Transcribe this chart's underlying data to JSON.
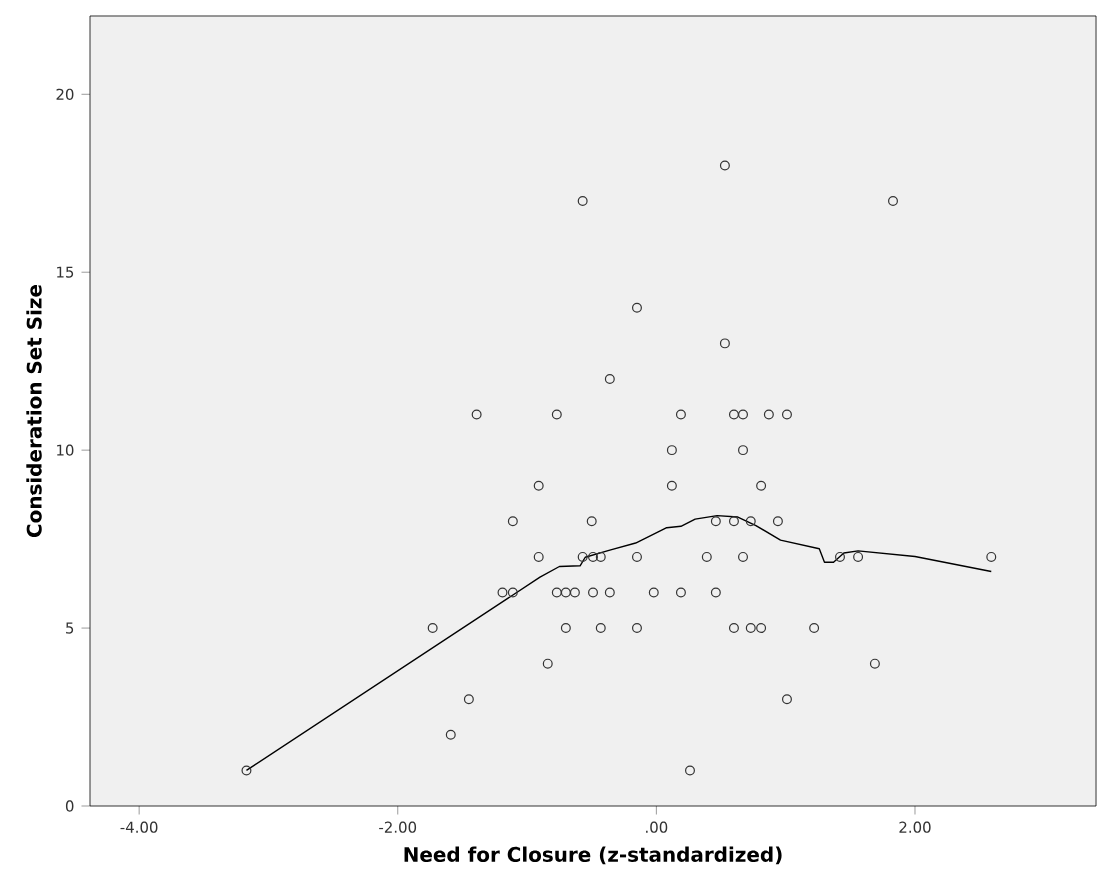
{
  "chart_data": {
    "type": "scatter",
    "xlabel": "Need for Closure (z-standardized)",
    "ylabel": "Consideration Set Size",
    "xlim": [
      -4.38,
      3.4
    ],
    "ylim": [
      0,
      22.2
    ],
    "xticks": [
      {
        "value": -4,
        "label": "-4.00"
      },
      {
        "value": -2,
        "label": "-2.00"
      },
      {
        "value": 0,
        "label": ".00"
      },
      {
        "value": 2,
        "label": "2.00"
      }
    ],
    "yticks": [
      0,
      5,
      10,
      15,
      20
    ],
    "grid": false,
    "series": [
      {
        "marker": "circle",
        "color": "#333333",
        "x": [
          -3.17,
          -1.73,
          -1.59,
          -1.45,
          -1.39,
          -1.19,
          -1.11,
          -1.11,
          -0.91,
          -0.91,
          -0.84,
          -0.77,
          -0.77,
          -0.7,
          -0.7,
          -0.63,
          -0.57,
          -0.57,
          -0.5,
          -0.49,
          -0.49,
          -0.43,
          -0.43,
          -0.36,
          -0.36,
          -0.15,
          -0.15,
          -0.15,
          -0.02,
          0.12,
          0.12,
          0.19,
          0.19,
          0.26,
          0.39,
          0.46,
          0.46,
          0.53,
          0.53,
          0.6,
          0.6,
          0.6,
          0.67,
          0.67,
          0.67,
          0.73,
          0.73,
          0.81,
          0.81,
          0.87,
          0.94,
          1.01,
          1.01,
          1.22,
          1.42,
          1.56,
          1.69,
          1.83,
          2.59
        ],
        "values": [
          1,
          5,
          2,
          3,
          11,
          6,
          6,
          8,
          9,
          7,
          4,
          11,
          6,
          6,
          5,
          6,
          17,
          7,
          8,
          7,
          6,
          7,
          5,
          12,
          6,
          14,
          7,
          5,
          6,
          10,
          9,
          11,
          6,
          1,
          7,
          8,
          6,
          18,
          13,
          11,
          8,
          5,
          11,
          10,
          7,
          8,
          5,
          9,
          5,
          11,
          8,
          11,
          3,
          5,
          7,
          7,
          4,
          17,
          7
        ]
      },
      {
        "type": "line",
        "marker": "none",
        "line_style": "solid",
        "color": "#000000",
        "x": [
          -3.17,
          -0.9,
          -0.75,
          -0.59,
          -0.55,
          -0.36,
          -0.16,
          0.08,
          0.19,
          0.3,
          0.47,
          0.63,
          0.77,
          0.96,
          1.26,
          1.3,
          1.37,
          1.45,
          1.56,
          2.0,
          2.59
        ],
        "values": [
          1,
          6.43,
          6.73,
          6.75,
          6.99,
          7.19,
          7.39,
          7.82,
          7.86,
          8.06,
          8.16,
          8.12,
          7.88,
          7.47,
          7.23,
          6.85,
          6.85,
          7.11,
          7.17,
          7.01,
          6.59
        ]
      }
    ]
  }
}
